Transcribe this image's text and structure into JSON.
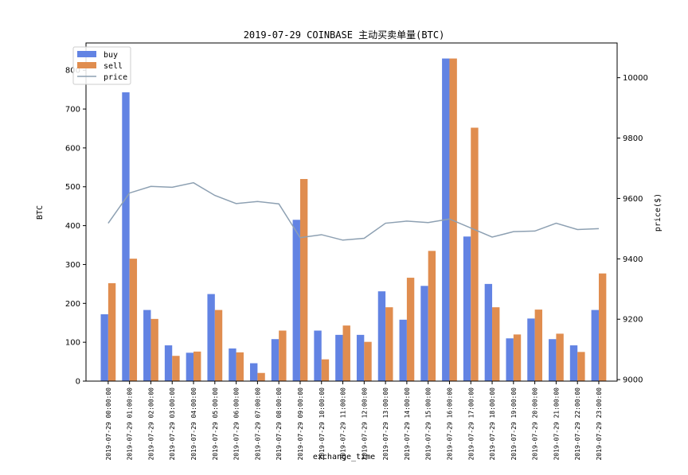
{
  "chart_data": {
    "type": "bar",
    "title": "2019-07-29 COINBASE 主动买卖单量(BTC)",
    "xlabel": "exchange_time",
    "ylabel": "BTC",
    "y2label": "price($)",
    "ylim": [
      0,
      870
    ],
    "y2lim": [
      8995,
      10115
    ],
    "yticks": [
      0,
      100,
      200,
      300,
      400,
      500,
      600,
      700,
      800
    ],
    "y2ticks": [
      9000,
      9200,
      9400,
      9600,
      9800,
      10000
    ],
    "legend_position": "top-left",
    "grid": false,
    "categories": [
      "2019-07-29 00:00:00",
      "2019-07-29 01:00:00",
      "2019-07-29 02:00:00",
      "2019-07-29 03:00:00",
      "2019-07-29 04:00:00",
      "2019-07-29 05:00:00",
      "2019-07-29 06:00:00",
      "2019-07-29 07:00:00",
      "2019-07-29 08:00:00",
      "2019-07-29 09:00:00",
      "2019-07-29 10:00:00",
      "2019-07-29 11:00:00",
      "2019-07-29 12:00:00",
      "2019-07-29 13:00:00",
      "2019-07-29 14:00:00",
      "2019-07-29 15:00:00",
      "2019-07-29 16:00:00",
      "2019-07-29 17:00:00",
      "2019-07-29 18:00:00",
      "2019-07-29 19:00:00",
      "2019-07-29 20:00:00",
      "2019-07-29 21:00:00",
      "2019-07-29 22:00:00",
      "2019-07-29 23:00:00"
    ],
    "series": [
      {
        "name": "buy",
        "color": "#6283e3",
        "values": [
          172,
          743,
          183,
          92,
          73,
          224,
          84,
          46,
          108,
          415,
          130,
          119,
          119,
          231,
          158,
          245,
          830,
          372,
          250,
          110,
          161,
          108,
          92,
          183
        ]
      },
      {
        "name": "sell",
        "color": "#e08d4f",
        "values": [
          252,
          315,
          160,
          65,
          76,
          183,
          74,
          21,
          130,
          520,
          56,
          143,
          101,
          190,
          266,
          335,
          830,
          652,
          190,
          120,
          184,
          122,
          75,
          277
        ]
      },
      {
        "name": "price",
        "type": "line",
        "axis": "right",
        "color": "#8da0b2",
        "values": [
          9518,
          9618,
          9640,
          9637,
          9652,
          9610,
          9583,
          9590,
          9582,
          9470,
          9480,
          9462,
          9468,
          9518,
          9525,
          9520,
          9532,
          9502,
          9472,
          9490,
          9492,
          9518,
          9497,
          9500
        ]
      }
    ]
  }
}
